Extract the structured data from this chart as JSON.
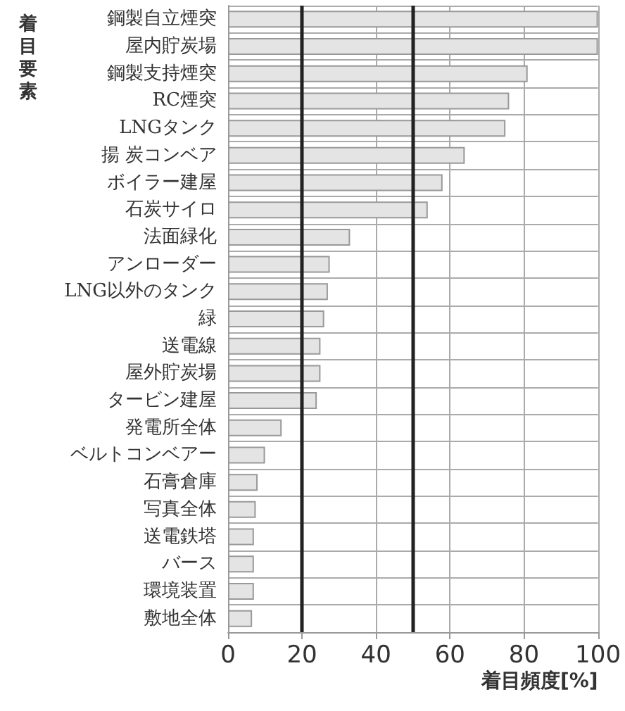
{
  "chart_data": {
    "type": "bar",
    "orientation": "horizontal",
    "xlabel": "着目頻度[%]",
    "ylabel": "着目要素",
    "categories": [
      "鋼製自立煙突",
      "屋内貯炭場",
      "鋼製支持煙突",
      "RC煙突",
      "LNGタンク",
      "揚 炭コンベア",
      "ボイラー建屋",
      "石炭サイロ",
      "法面緑化",
      "アンローダー",
      "LNG以外のタンク",
      "緑",
      "送電線",
      "屋外貯炭場",
      "タービン建屋",
      "発電所全体",
      "ベルトコンベアー",
      "石膏倉庫",
      "写真全体",
      "送電鉄塔",
      "バース",
      "環境装置",
      "敷地全体"
    ],
    "values": [
      100,
      100,
      81,
      76,
      75,
      64,
      58,
      54,
      33,
      27.5,
      27,
      26,
      25,
      25,
      24,
      14.5,
      10,
      8,
      7.5,
      7,
      7,
      7,
      6.5
    ],
    "color": "#e4e4e4",
    "xlim": [
      0,
      100
    ],
    "xticks": [
      0,
      20,
      40,
      60,
      80,
      100
    ],
    "grid": true,
    "ref_lines": [
      {
        "axis": "x",
        "value": 20,
        "color": "#222222"
      },
      {
        "axis": "x",
        "value": 50,
        "color": "#222222"
      }
    ]
  }
}
